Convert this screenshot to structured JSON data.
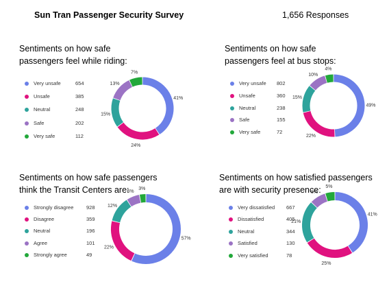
{
  "header": {
    "title": "Sun Tran Passenger Security Survey",
    "responses": "1,656 Responses"
  },
  "colors": [
    "#6b80e8",
    "#e0127f",
    "#2ea39c",
    "#9b73c4",
    "#22a83a"
  ],
  "chart_data": [
    {
      "type": "pie",
      "title_lines": [
        "Sentiments on how safe",
        "passengers feel while riding:"
      ],
      "categories": [
        "Very unsafe",
        "Unsafe",
        "Neutral",
        "Safe",
        "Very safe"
      ],
      "values": [
        654,
        385,
        248,
        202,
        112
      ],
      "percent_labels": [
        "41%",
        "24%",
        "15%",
        "13%",
        "7%"
      ]
    },
    {
      "type": "pie",
      "title_lines": [
        "Sentiments on how safe",
        "passengers feel at bus stops:"
      ],
      "categories": [
        "Very unsafe",
        "Unsafe",
        "Neutral",
        "Safe",
        "Very safe"
      ],
      "values": [
        802,
        360,
        238,
        155,
        72
      ],
      "percent_labels": [
        "49%",
        "22%",
        "15%",
        "10%",
        "4%"
      ]
    },
    {
      "type": "pie",
      "title_lines": [
        "Sentiments on how safe passengers",
        "think the Transit Centers are:"
      ],
      "categories": [
        "Strongly disagree",
        "Disagree",
        "Neutral",
        "Agree",
        "Strongly agree"
      ],
      "values": [
        928,
        359,
        196,
        101,
        49
      ],
      "percent_labels": [
        "57%",
        "22%",
        "12%",
        "6%",
        "3%"
      ]
    },
    {
      "type": "pie",
      "title_lines": [
        "Sentiments on how satisfied passengers",
        "are with security presence:"
      ],
      "categories": [
        "Very dissatisfied",
        "Dissatisfied",
        "Neutral",
        "Satisfied",
        "Very satisfied"
      ],
      "values": [
        667,
        405,
        344,
        130,
        78
      ],
      "percent_labels": [
        "41%",
        "25%",
        "21%",
        "8%",
        "5%"
      ]
    }
  ]
}
